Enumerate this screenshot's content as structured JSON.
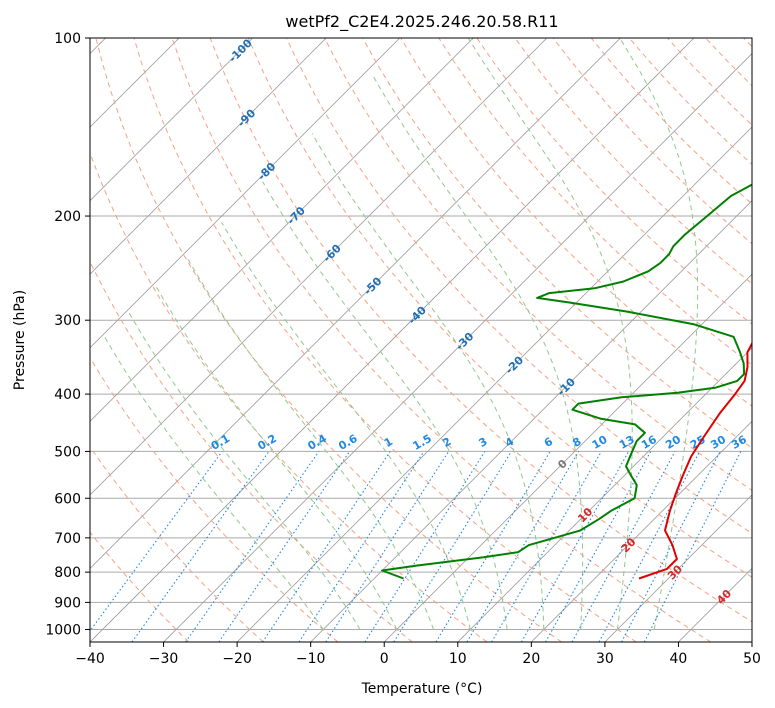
{
  "chart_data": {
    "type": "line",
    "title": "wetPf2_C2E4.2025.246.20.58.R11",
    "xlabel": "Temperature (°C)",
    "ylabel": "Pressure (hPa)",
    "xlim": [
      -40,
      50
    ],
    "ylim": [
      1050,
      100
    ],
    "x_ticks": [
      "−40",
      "−30",
      "−20",
      "−10",
      "0",
      "10",
      "20",
      "30",
      "40",
      "50"
    ],
    "y_ticks": [
      "100",
      "200",
      "300",
      "400",
      "500",
      "600",
      "700",
      "800",
      "900",
      "1000"
    ],
    "y_tick_values": [
      100,
      200,
      300,
      400,
      500,
      600,
      700,
      800,
      900,
      1000
    ],
    "series": [
      {
        "name": "temperature",
        "color": "#e00000",
        "points": [
          [
            26.0,
            820
          ],
          [
            28.5,
            790
          ],
          [
            28.5,
            760
          ],
          [
            26.0,
            720
          ],
          [
            23.0,
            680
          ],
          [
            21.0,
            630
          ],
          [
            19.5,
            590
          ],
          [
            18.0,
            550
          ],
          [
            16.5,
            510
          ],
          [
            15.5,
            470
          ],
          [
            14.5,
            430
          ],
          [
            14.0,
            400
          ],
          [
            13.5,
            380
          ],
          [
            12.0,
            360
          ],
          [
            10.0,
            340
          ],
          [
            9.0,
            320
          ],
          [
            9.0,
            300
          ],
          [
            8.5,
            280
          ],
          [
            7.8,
            260
          ],
          [
            7.0,
            240
          ],
          [
            6.0,
            220
          ],
          [
            5.0,
            200
          ],
          [
            4.2,
            185
          ],
          [
            4.0,
            170
          ],
          [
            4.5,
            160
          ],
          [
            5.0,
            150
          ],
          [
            5.0,
            140
          ],
          [
            5.5,
            130
          ],
          [
            7.0,
            120
          ],
          [
            9.0,
            115
          ],
          [
            10.5,
            110
          ],
          [
            10.5,
            104
          ],
          [
            11.0,
            100
          ]
        ]
      },
      {
        "name": "dewpoint",
        "color": "#008000",
        "points": [
          [
            -6.0,
            820
          ],
          [
            -10.0,
            795
          ],
          [
            -6.0,
            780
          ],
          [
            2.0,
            755
          ],
          [
            6.0,
            740
          ],
          [
            6.5,
            720
          ],
          [
            9.0,
            700
          ],
          [
            11.5,
            680
          ],
          [
            12.5,
            650
          ],
          [
            13.0,
            630
          ],
          [
            14.5,
            600
          ],
          [
            13.0,
            570
          ],
          [
            11.0,
            550
          ],
          [
            9.0,
            530
          ],
          [
            8.0,
            505
          ],
          [
            7.0,
            480
          ],
          [
            7.0,
            465
          ],
          [
            4.5,
            450
          ],
          [
            -1.0,
            440
          ],
          [
            -6.0,
            425
          ],
          [
            -6.0,
            415
          ],
          [
            -1.0,
            405
          ],
          [
            6.0,
            398
          ],
          [
            10.5,
            390
          ],
          [
            12.5,
            380
          ],
          [
            12.5,
            370
          ],
          [
            11.0,
            355
          ],
          [
            9.0,
            340
          ],
          [
            6.0,
            320
          ],
          [
            -1.0,
            305
          ],
          [
            -12.0,
            290
          ],
          [
            -21.0,
            280
          ],
          [
            -26.0,
            275
          ],
          [
            -25.0,
            270
          ],
          [
            -19.5,
            265
          ],
          [
            -16.5,
            258
          ],
          [
            -14.5,
            248
          ],
          [
            -14.0,
            240
          ],
          [
            -14.0,
            232
          ],
          [
            -14.5,
            225
          ],
          [
            -14.5,
            215
          ],
          [
            -14.0,
            200
          ],
          [
            -13.5,
            185
          ],
          [
            -11.0,
            170
          ],
          [
            -9.5,
            160
          ],
          [
            -8.0,
            150
          ],
          [
            -7.0,
            140
          ],
          [
            -6.0,
            130
          ],
          [
            -5.0,
            120
          ],
          [
            -4.0,
            112
          ],
          [
            -2.0,
            105
          ],
          [
            -1.0,
            100
          ]
        ]
      }
    ],
    "dry_adiabat_labels": [
      "-100",
      "-90",
      "-80",
      "-70",
      "-60",
      "-50",
      "-40",
      "-30",
      "-20",
      "-10",
      "0",
      "10",
      "20",
      "30",
      "40"
    ],
    "dry_adiabat_values": [
      -100,
      -90,
      -80,
      -70,
      -60,
      -50,
      -40,
      -30,
      -20,
      -10,
      0,
      10,
      20,
      30,
      40
    ],
    "mixing_ratio_labels": [
      "0.1",
      "0.2",
      "0.4",
      "0.6",
      "1",
      "1.5",
      "2",
      "3",
      "4",
      "6",
      "8",
      "10",
      "13",
      "16",
      "20",
      "25",
      "30",
      "36"
    ],
    "mixing_ratio_values": [
      0.1,
      0.2,
      0.4,
      0.6,
      1,
      1.5,
      2,
      3,
      4,
      6,
      8,
      10,
      13,
      16,
      20,
      25,
      30,
      36
    ],
    "colors": {
      "isotherm": "#999999",
      "isobar": "#aaaaaa",
      "dry_adiabat": "#f4a184",
      "moist_adiabat": "#8fc88f",
      "mixing_ratio": "#1e88e5",
      "adiabat_label_cold": "#1f6fb4",
      "adiabat_label_warm": "#d62728",
      "adiabat_label_zero": "#777777"
    }
  }
}
